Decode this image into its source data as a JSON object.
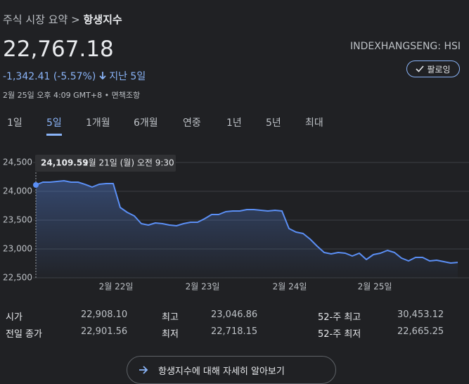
{
  "breadcrumb": {
    "parent": "주식 시장 요약",
    "separator": ">",
    "current": "항생지수"
  },
  "price": "22,767.18",
  "ticker": "INDEXHANGSENG: HSI",
  "change": "-1,342.41 (-5.57%)",
  "change_period": "지난 5일",
  "follow_button": "팔로잉",
  "timestamp": "2월 25일 오후 4:09 GMT+8",
  "timestamp_separator": "•",
  "disclaimer": "면책조항",
  "tabs": [
    "1일",
    "5일",
    "1개월",
    "6개월",
    "연중",
    "1년",
    "5년",
    "최대"
  ],
  "selected_tab": "5일",
  "chart_data": {
    "type": "line",
    "color": "#5b8ff5",
    "series": [
      {
        "values": [
          24109.59,
          24159,
          24159,
          24171,
          24183,
          24159,
          24159,
          24120,
          24073,
          24122,
          24134,
          24134,
          23720,
          23634,
          23573,
          23439,
          23415,
          23451,
          23439,
          23415,
          23402,
          23439,
          23463,
          23463,
          23524,
          23598,
          23598,
          23646,
          23659,
          23659,
          23683,
          23683,
          23671,
          23659,
          23671,
          23659,
          23354,
          23293,
          23268,
          23171,
          23049,
          22939,
          22915,
          22939,
          22927,
          22878,
          22927,
          22817,
          22902,
          22927,
          22976,
          22939,
          22841,
          22793,
          22854,
          22854,
          22793,
          22805,
          22780,
          22756,
          22767.18
        ]
      }
    ],
    "xlim": [
      0,
      60
    ],
    "xticks": [
      {
        "value": 11.4,
        "label": "2월 22일"
      },
      {
        "value": 23.7,
        "label": "2월 23일"
      },
      {
        "value": 36.1,
        "label": "2월 24일"
      },
      {
        "value": 48.2,
        "label": "2월 25일"
      }
    ],
    "ylim": [
      22500,
      24500
    ],
    "yticks": [
      {
        "value": 22500,
        "label": "22,500"
      },
      {
        "value": 23000,
        "label": "23,000"
      },
      {
        "value": 23500,
        "label": "23,500"
      },
      {
        "value": 24000,
        "label": "24,000"
      },
      {
        "value": 24500,
        "label": "24,500"
      }
    ],
    "grid": true,
    "tooltip": {
      "value_label": "24,109.59",
      "date": "2월 21일 (월) 오전 9:30"
    }
  },
  "stats": [
    [
      "시가",
      "22,908.10",
      "최고",
      "23,046.86",
      "52-주 최고",
      "30,453.12"
    ],
    [
      "전일 종가",
      "22,901.56",
      "최저",
      "22,718.15",
      "52-주 최저",
      "22,665.25"
    ]
  ],
  "learn_more": "항생지수에 대해 자세히 알아보기"
}
